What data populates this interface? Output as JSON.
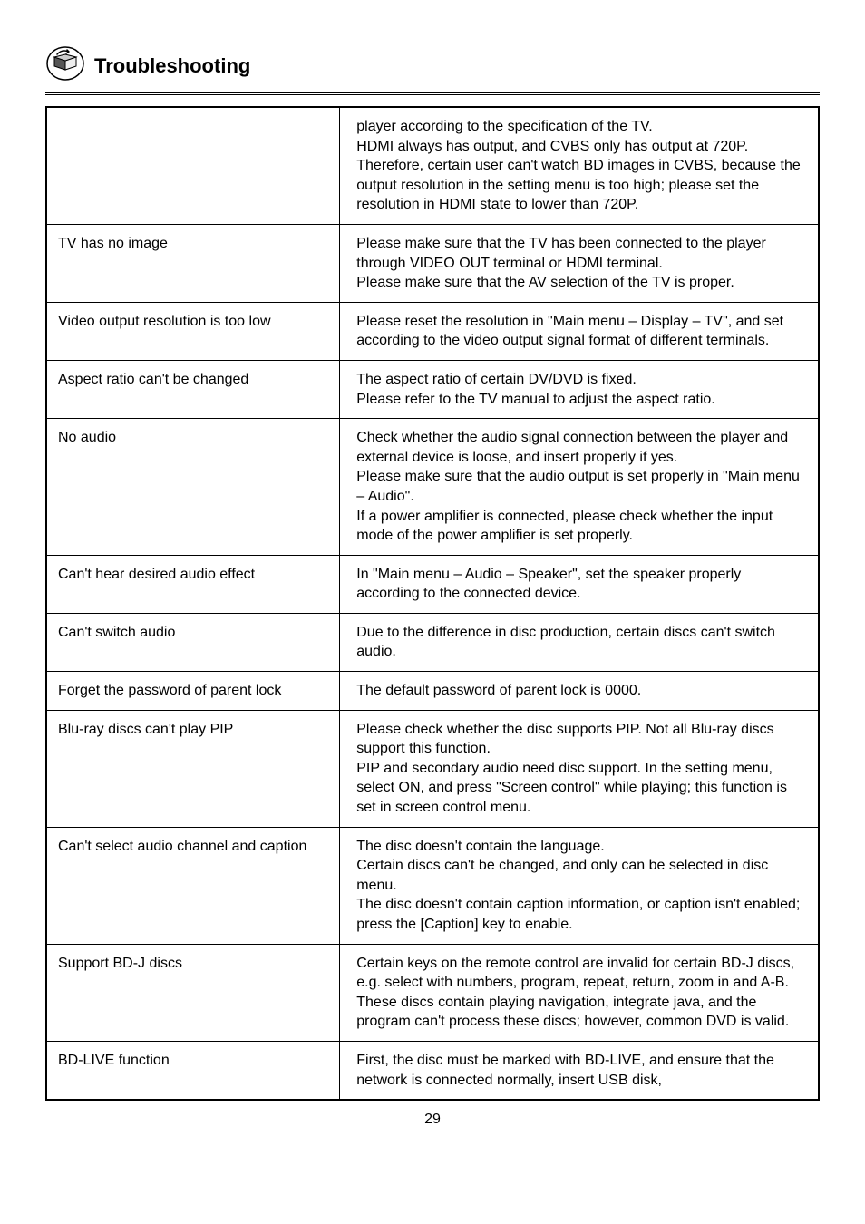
{
  "header": {
    "title": "Troubleshooting"
  },
  "rows": [
    {
      "problem": "",
      "solution": "player according to the specification of the TV.\nHDMI always has output, and CVBS only has output at 720P.\nTherefore, certain user can't watch BD images in CVBS, because the output resolution in the setting menu is too high; please set the resolution in HDMI state to lower than 720P."
    },
    {
      "problem": "TV has no image",
      "solution": "  Please make sure that the TV has been connected to the player through VIDEO OUT terminal or HDMI terminal.\nPlease make sure that the AV selection of the TV is proper."
    },
    {
      "problem": "Video output resolution is too low",
      "solution": "  Please reset the resolution in \"Main menu – Display – TV\", and set according to the video output signal format of different terminals."
    },
    {
      "problem": "Aspect ratio can't be changed",
      "solution": "  The aspect ratio of certain DV/DVD is fixed.\nPlease refer to the TV manual to adjust the aspect ratio."
    },
    {
      "problem": "No audio",
      "solution": "  Check whether the audio signal connection between the player and external device is loose, and insert properly if yes.\nPlease make sure that the audio output is set properly in \"Main menu – Audio\".\nIf a power amplifier is connected, please check whether the input mode of the power amplifier is set properly."
    },
    {
      "problem": "Can't hear desired audio effect",
      "solution": "  In \"Main menu – Audio – Speaker\", set the speaker properly according to the connected device."
    },
    {
      "problem": "Can't switch audio",
      "solution": "  Due to the difference in disc production, certain discs can't switch audio."
    },
    {
      "problem": "Forget the password of parent lock",
      "solution": "  The default password of parent lock is 0000."
    },
    {
      "problem": "Blu-ray discs can't play PIP",
      "solution": "  Please check whether the disc supports PIP. Not all Blu-ray discs support this function.\nPIP and secondary audio need disc support. In the setting menu, select ON, and press \"Screen control\" while playing; this function is set in screen control menu."
    },
    {
      "problem": "Can't select audio channel and caption",
      "solution": "  The disc doesn't contain the language.\nCertain discs can't be changed, and only can be selected in disc menu.\nThe disc doesn't contain caption information, or caption isn't enabled; press the [Caption] key to enable."
    },
    {
      "problem": "Support BD-J discs",
      "solution": "  Certain keys on the remote control are invalid for certain BD-J discs, e.g. select with numbers, program, repeat, return, zoom in and A-B. These discs contain playing navigation, integrate java, and the program can't process these discs; however, common DVD is valid."
    },
    {
      "problem": "BD-LIVE function",
      "solution": "  First, the disc must be marked with BD-LIVE, and ensure that the network is connected normally, insert USB disk,"
    }
  ],
  "page_number": "29"
}
